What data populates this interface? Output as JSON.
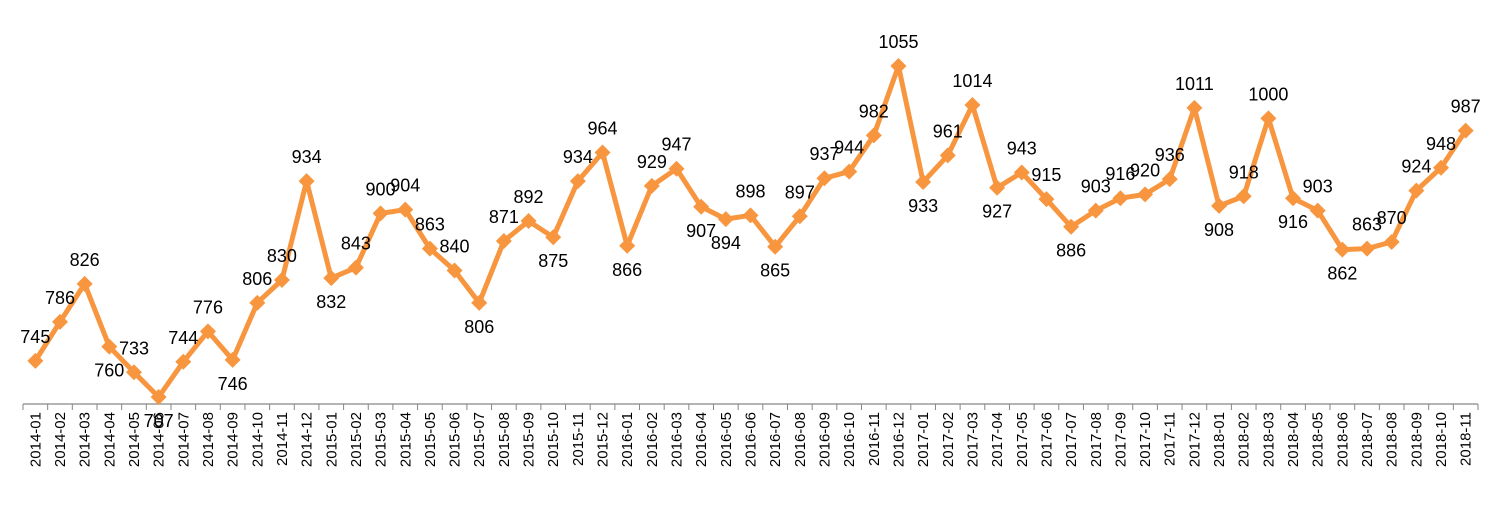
{
  "chart_data": {
    "type": "line",
    "title": "",
    "xlabel": "",
    "ylabel": "",
    "ylim": [
      700,
      1060
    ],
    "grid": false,
    "legend": "none",
    "colors": {
      "line": "#F7963F",
      "marker": "#F7963F",
      "axis": "#868686",
      "text": "#000000"
    },
    "categories": [
      "2014-01",
      "2014-02",
      "2014-03",
      "2014-04",
      "2014-05",
      "2014-06",
      "2014-07",
      "2014-08",
      "2014-09",
      "2014-10",
      "2014-11",
      "2014-12",
      "2015-01",
      "2015-02",
      "2015-03",
      "2015-04",
      "2015-05",
      "2015-06",
      "2015-07",
      "2015-08",
      "2015-09",
      "2015-10",
      "2015-11",
      "2015-12",
      "2016-01",
      "2016-02",
      "2016-03",
      "2016-04",
      "2016-05",
      "2016-06",
      "2016-07",
      "2016-08",
      "2016-09",
      "2016-10",
      "2016-11",
      "2016-12",
      "2017-01",
      "2017-02",
      "2017-03",
      "2017-04",
      "2017-05",
      "2017-06",
      "2017-07",
      "2017-08",
      "2017-09",
      "2017-10",
      "2017-11",
      "2017-12",
      "2018-01",
      "2018-02",
      "2018-03",
      "2018-04",
      "2018-05",
      "2018-06",
      "2018-07",
      "2018-08",
      "2018-09",
      "2018-10",
      "2018-11"
    ],
    "series": [
      {
        "values": [
          745,
          786,
          826,
          760,
          733,
          707,
          744,
          776,
          746,
          806,
          830,
          934,
          832,
          843,
          900,
          904,
          863,
          840,
          806,
          871,
          892,
          875,
          934,
          964,
          866,
          929,
          947,
          907,
          894,
          898,
          865,
          897,
          937,
          944,
          982,
          1055,
          933,
          961,
          1014,
          927,
          943,
          915,
          886,
          903,
          916,
          920,
          936,
          1011,
          908,
          918,
          1000,
          916,
          903,
          862,
          863,
          870,
          924,
          948,
          987
        ]
      }
    ]
  }
}
